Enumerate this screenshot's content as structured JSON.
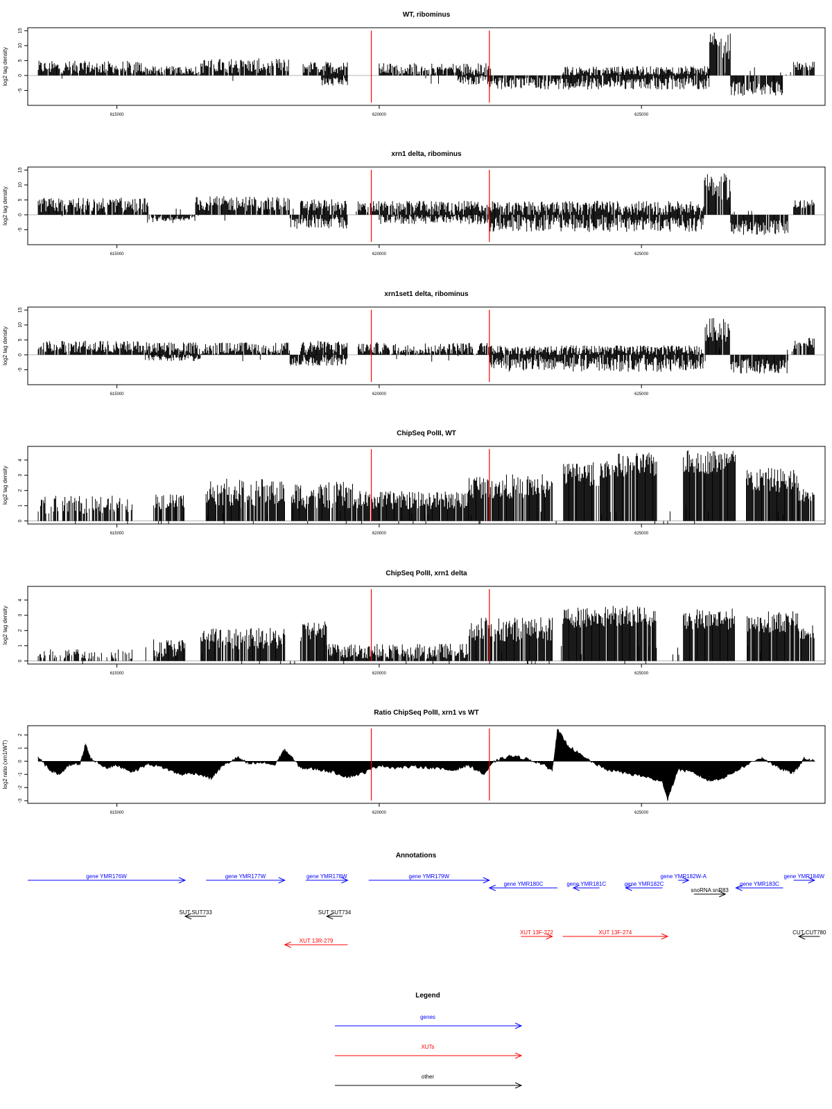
{
  "chart_data": [
    {
      "type": "bar",
      "title": "WT, ribominus",
      "ylabel": "log2 tag density",
      "xlim": [
        613300,
        628500
      ],
      "ylim": [
        -10,
        16
      ],
      "yticks": [
        -5,
        0,
        5,
        10,
        15
      ],
      "xticks": [
        615000,
        620000,
        625000
      ],
      "xtick_labels": [
        "615000",
        "620000",
        "625000"
      ],
      "vlines": [
        619850,
        622100
      ],
      "segments": [
        {
          "x": [
            613500,
            615500
          ],
          "sign": 1,
          "level": 2.5,
          "jitter": 2.2
        },
        {
          "x": [
            615500,
            616600
          ],
          "sign": 1,
          "level": 1.5,
          "jitter": 1.5
        },
        {
          "x": [
            616600,
            618300
          ],
          "sign": 1,
          "level": 3.0,
          "jitter": 2.5
        },
        {
          "x": [
            618550,
            619400
          ],
          "sign": 1,
          "level": 2.5,
          "jitter": 2.0
        },
        {
          "x": [
            618900,
            619400
          ],
          "sign": -1,
          "level": 2.0,
          "jitter": 1.5
        },
        {
          "x": [
            620000,
            622100
          ],
          "sign": 1,
          "level": 2.0,
          "jitter": 2.0
        },
        {
          "x": [
            621500,
            622100
          ],
          "sign": -1,
          "level": 1.5,
          "jitter": 1.5
        },
        {
          "x": [
            622100,
            626300
          ],
          "sign": -1,
          "level": 2.5,
          "jitter": 2.0
        },
        {
          "x": [
            623500,
            626300
          ],
          "sign": 1,
          "level": 1.5,
          "jitter": 1.5
        },
        {
          "x": [
            626300,
            626700
          ],
          "sign": 1,
          "level": 9.5,
          "jitter": 4.5
        },
        {
          "x": [
            626700,
            627700
          ],
          "sign": -1,
          "level": 4.0,
          "jitter": 2.5
        },
        {
          "x": [
            627900,
            628300
          ],
          "sign": 1,
          "level": 3.0,
          "jitter": 1.5
        }
      ]
    },
    {
      "type": "bar",
      "title": "xrn1 delta, ribominus",
      "ylabel": "log2 tag density",
      "xlim": [
        613300,
        628500
      ],
      "ylim": [
        -10,
        16
      ],
      "yticks": [
        -5,
        0,
        5,
        10,
        15
      ],
      "xticks": [
        615000,
        620000,
        625000
      ],
      "xtick_labels": [
        "615000",
        "620000",
        "625000"
      ],
      "vlines": [
        619850,
        622100
      ],
      "segments": [
        {
          "x": [
            613500,
            615600
          ],
          "sign": 1,
          "level": 3.0,
          "jitter": 2.5
        },
        {
          "x": [
            615600,
            616500
          ],
          "sign": -1,
          "level": 1.0,
          "jitter": 1.0
        },
        {
          "x": [
            616500,
            618300
          ],
          "sign": 1,
          "level": 3.5,
          "jitter": 2.5
        },
        {
          "x": [
            618300,
            619400
          ],
          "sign": -1,
          "level": 2.5,
          "jitter": 2.0
        },
        {
          "x": [
            618500,
            619400
          ],
          "sign": 1,
          "level": 3.0,
          "jitter": 2.0
        },
        {
          "x": [
            619600,
            622100
          ],
          "sign": 1,
          "level": 2.5,
          "jitter": 2.0
        },
        {
          "x": [
            620000,
            622100
          ],
          "sign": -1,
          "level": 1.5,
          "jitter": 1.5
        },
        {
          "x": [
            622100,
            626200
          ],
          "sign": -1,
          "level": 3.0,
          "jitter": 2.5
        },
        {
          "x": [
            622100,
            626200
          ],
          "sign": 1,
          "level": 2.5,
          "jitter": 2.0
        },
        {
          "x": [
            626200,
            626700
          ],
          "sign": 1,
          "level": 9.0,
          "jitter": 4.5
        },
        {
          "x": [
            626700,
            627800
          ],
          "sign": -1,
          "level": 4.0,
          "jitter": 2.5
        },
        {
          "x": [
            627900,
            628300
          ],
          "sign": 1,
          "level": 3.5,
          "jitter": 1.5
        }
      ]
    },
    {
      "type": "bar",
      "title": "xrn1set1 delta, ribominus",
      "ylabel": "log2 tag density",
      "xlim": [
        613300,
        628500
      ],
      "ylim": [
        -10,
        16
      ],
      "yticks": [
        -5,
        0,
        5,
        10,
        15
      ],
      "xticks": [
        615000,
        620000,
        625000
      ],
      "xtick_labels": [
        "615000",
        "620000",
        "625000"
      ],
      "vlines": [
        619850,
        622100
      ],
      "segments": [
        {
          "x": [
            613500,
            615600
          ],
          "sign": 1,
          "level": 2.5,
          "jitter": 2.0
        },
        {
          "x": [
            615600,
            616600
          ],
          "sign": -1,
          "level": 1.0,
          "jitter": 1.0
        },
        {
          "x": [
            615600,
            618300
          ],
          "sign": 1,
          "level": 2.0,
          "jitter": 2.0
        },
        {
          "x": [
            618300,
            619400
          ],
          "sign": -1,
          "level": 2.0,
          "jitter": 1.5
        },
        {
          "x": [
            618500,
            619400
          ],
          "sign": 1,
          "level": 2.5,
          "jitter": 2.0
        },
        {
          "x": [
            619600,
            622100
          ],
          "sign": 1,
          "level": 2.0,
          "jitter": 2.0
        },
        {
          "x": [
            622100,
            626200
          ],
          "sign": -1,
          "level": 3.0,
          "jitter": 2.5
        },
        {
          "x": [
            622100,
            626200
          ],
          "sign": 1,
          "level": 1.5,
          "jitter": 1.5
        },
        {
          "x": [
            626200,
            626700
          ],
          "sign": 1,
          "level": 8.0,
          "jitter": 4.0
        },
        {
          "x": [
            626700,
            627800
          ],
          "sign": -1,
          "level": 3.5,
          "jitter": 2.5
        },
        {
          "x": [
            627900,
            628300
          ],
          "sign": 1,
          "level": 3.5,
          "jitter": 2.0
        }
      ]
    },
    {
      "type": "bar",
      "title": "ChipSeq PolII, WT",
      "ylabel": "log2 tag density",
      "xlim": [
        613300,
        628500
      ],
      "ylim": [
        -0.2,
        4.9
      ],
      "yticks": [
        0,
        1,
        2,
        3,
        4
      ],
      "xticks": [
        615000,
        620000,
        625000
      ],
      "xtick_labels": [
        "615000",
        "620000",
        "625000"
      ],
      "vlines": [
        619850,
        622100
      ],
      "segments": [
        {
          "x": [
            613500,
            615300
          ],
          "sign": 1,
          "level": 1.0,
          "jitter": 0.6,
          "density": 0.6
        },
        {
          "x": [
            615700,
            616300
          ],
          "sign": 1,
          "level": 1.2,
          "jitter": 0.5,
          "density": 0.7
        },
        {
          "x": [
            616700,
            618200
          ],
          "sign": 1,
          "level": 1.8,
          "jitter": 0.9
        },
        {
          "x": [
            618300,
            619500
          ],
          "sign": 1,
          "level": 1.6,
          "jitter": 0.9
        },
        {
          "x": [
            619500,
            621700
          ],
          "sign": 1,
          "level": 1.3,
          "jitter": 0.6
        },
        {
          "x": [
            621700,
            623300
          ],
          "sign": 1,
          "level": 2.2,
          "jitter": 0.8
        },
        {
          "x": [
            623500,
            624400
          ],
          "sign": 1,
          "level": 3.0,
          "jitter": 0.8
        },
        {
          "x": [
            624300,
            625300
          ],
          "sign": 1,
          "level": 3.6,
          "jitter": 0.8
        },
        {
          "x": [
            625800,
            626800
          ],
          "sign": 1,
          "level": 3.8,
          "jitter": 0.8
        },
        {
          "x": [
            627000,
            628000
          ],
          "sign": 1,
          "level": 2.6,
          "jitter": 0.8
        },
        {
          "x": [
            628000,
            628300
          ],
          "sign": 1,
          "level": 1.6,
          "jitter": 0.5
        }
      ]
    },
    {
      "type": "bar",
      "title": "ChipSeq PolII, xrn1 delta",
      "ylabel": "log2 tag density",
      "xlim": [
        613300,
        628500
      ],
      "ylim": [
        -0.2,
        4.9
      ],
      "yticks": [
        0,
        1,
        2,
        3,
        4
      ],
      "xticks": [
        615000,
        620000,
        625000
      ],
      "xtick_labels": [
        "615000",
        "620000",
        "625000"
      ],
      "vlines": [
        619850,
        622100
      ],
      "segments": [
        {
          "x": [
            613500,
            615300
          ],
          "sign": 1,
          "level": 0.4,
          "jitter": 0.4,
          "density": 0.4
        },
        {
          "x": [
            615700,
            616300
          ],
          "sign": 1,
          "level": 0.8,
          "jitter": 0.6
        },
        {
          "x": [
            616600,
            618200
          ],
          "sign": 1,
          "level": 1.4,
          "jitter": 0.7
        },
        {
          "x": [
            618500,
            619000
          ],
          "sign": 1,
          "level": 1.9,
          "jitter": 0.7
        },
        {
          "x": [
            619000,
            621700
          ],
          "sign": 1,
          "level": 0.6,
          "jitter": 0.5
        },
        {
          "x": [
            621700,
            623300
          ],
          "sign": 1,
          "level": 2.0,
          "jitter": 0.8
        },
        {
          "x": [
            623500,
            624400
          ],
          "sign": 1,
          "level": 2.8,
          "jitter": 0.7
        },
        {
          "x": [
            624300,
            625300
          ],
          "sign": 1,
          "level": 2.9,
          "jitter": 0.7
        },
        {
          "x": [
            625800,
            626800
          ],
          "sign": 1,
          "level": 2.7,
          "jitter": 0.7
        },
        {
          "x": [
            627000,
            628000
          ],
          "sign": 1,
          "level": 2.5,
          "jitter": 0.7
        },
        {
          "x": [
            628000,
            628300
          ],
          "sign": 1,
          "level": 1.8,
          "jitter": 0.5
        }
      ]
    },
    {
      "type": "area",
      "title": "Ratio ChipSeq PolII, xrn1 vs WT",
      "ylabel": "log2 ratio (xrn1/WT)",
      "xlim": [
        613300,
        628500
      ],
      "ylim": [
        -3.2,
        2.7
      ],
      "yticks": [
        -3,
        -2,
        -1,
        0,
        1,
        2
      ],
      "xticks": [
        615000,
        620000,
        625000
      ],
      "xtick_labels": [
        "615000",
        "620000",
        "625000"
      ],
      "vlines": [
        619850,
        622100
      ],
      "points": [
        [
          613500,
          0.3
        ],
        [
          613700,
          -0.6
        ],
        [
          613900,
          -1.0
        ],
        [
          614100,
          -0.3
        ],
        [
          614300,
          -0.2
        ],
        [
          614400,
          1.3
        ],
        [
          614500,
          0.2
        ],
        [
          614800,
          -0.5
        ],
        [
          615000,
          -0.3
        ],
        [
          615300,
          -0.8
        ],
        [
          615600,
          -0.2
        ],
        [
          615900,
          -0.5
        ],
        [
          616200,
          -1.0
        ],
        [
          616500,
          -0.9
        ],
        [
          616800,
          -1.3
        ],
        [
          617000,
          -0.4
        ],
        [
          617300,
          0.3
        ],
        [
          617500,
          -0.2
        ],
        [
          617800,
          -0.1
        ],
        [
          618000,
          -0.3
        ],
        [
          618200,
          0.9
        ],
        [
          618500,
          -0.5
        ],
        [
          618800,
          -0.6
        ],
        [
          619100,
          -0.8
        ],
        [
          619400,
          -1.2
        ],
        [
          619700,
          -0.9
        ],
        [
          620000,
          -0.3
        ],
        [
          620300,
          -0.5
        ],
        [
          620700,
          -0.4
        ],
        [
          621000,
          -0.5
        ],
        [
          621400,
          -0.7
        ],
        [
          621700,
          -0.3
        ],
        [
          622000,
          -1.0
        ],
        [
          622200,
          0.0
        ],
        [
          622500,
          0.4
        ],
        [
          622800,
          0.2
        ],
        [
          623100,
          -0.2
        ],
        [
          623300,
          -0.7
        ],
        [
          623400,
          2.4
        ],
        [
          623600,
          1.2
        ],
        [
          623900,
          0.3
        ],
        [
          624300,
          -0.6
        ],
        [
          624700,
          -0.9
        ],
        [
          625100,
          -1.2
        ],
        [
          625400,
          -1.6
        ],
        [
          625500,
          -2.9
        ],
        [
          625700,
          -0.6
        ],
        [
          626000,
          -0.9
        ],
        [
          626300,
          -1.5
        ],
        [
          626600,
          -1.2
        ],
        [
          626900,
          -0.5
        ],
        [
          627300,
          0.3
        ],
        [
          627600,
          -0.5
        ],
        [
          627900,
          -0.9
        ],
        [
          628100,
          0.2
        ],
        [
          628300,
          0.0
        ]
      ]
    }
  ],
  "annotations": {
    "title": "Annotations",
    "items": [
      {
        "label": "gene YMR176W",
        "type": "gene",
        "x": [
          613300,
          616300
        ],
        "dir": "right",
        "row": 0
      },
      {
        "label": "gene YMR177W",
        "type": "gene",
        "x": [
          616700,
          618200
        ],
        "dir": "right",
        "row": 0
      },
      {
        "label": "gene YMR178W",
        "type": "gene",
        "x": [
          618600,
          619400
        ],
        "dir": "right",
        "row": 0
      },
      {
        "label": "gene YMR179W",
        "type": "gene",
        "x": [
          619800,
          622100
        ],
        "dir": "right",
        "row": 0
      },
      {
        "label": "gene YMR180C",
        "type": "gene",
        "x": [
          622100,
          623400
        ],
        "dir": "left",
        "row": 1
      },
      {
        "label": "gene YMR181C",
        "type": "gene",
        "x": [
          623700,
          624200
        ],
        "dir": "left",
        "row": 1
      },
      {
        "label": "gene YMR182C",
        "type": "gene",
        "x": [
          624700,
          625400
        ],
        "dir": "left",
        "row": 1
      },
      {
        "label": "gene YMR182W-A",
        "type": "gene",
        "x": [
          625700,
          625900
        ],
        "dir": "right",
        "row": 0
      },
      {
        "label": "gene YMR183C",
        "type": "gene",
        "x": [
          626800,
          627700
        ],
        "dir": "left",
        "row": 1
      },
      {
        "label": "gene YMR184W",
        "type": "gene",
        "x": [
          627900,
          628300
        ],
        "dir": "right",
        "row": 0
      },
      {
        "label": "snoRNA snR83",
        "type": "other",
        "x": [
          626000,
          626600
        ],
        "dir": "right",
        "row": 2
      },
      {
        "label": "SUT SUT733",
        "type": "other",
        "x": [
          616300,
          616700
        ],
        "dir": "left",
        "row": 3
      },
      {
        "label": "SUT SUT734",
        "type": "other",
        "x": [
          619000,
          619300
        ],
        "dir": "left",
        "row": 3
      },
      {
        "label": "XUT 13R-279",
        "type": "xut",
        "x": [
          618200,
          619400
        ],
        "dir": "left",
        "row": 5
      },
      {
        "label": "XUT 13F-272",
        "type": "xut",
        "x": [
          622700,
          623300
        ],
        "dir": "right",
        "row": 4
      },
      {
        "label": "XUT 13F-274",
        "type": "xut",
        "x": [
          623500,
          625500
        ],
        "dir": "right",
        "row": 4
      },
      {
        "label": "CUT CUT780",
        "type": "other",
        "x": [
          628000,
          628400
        ],
        "dir": "left",
        "row": 4
      }
    ]
  },
  "legend": {
    "title": "Legend",
    "items": [
      {
        "label": "genes",
        "type": "gene"
      },
      {
        "label": "XUTs",
        "type": "xut"
      },
      {
        "label": "other",
        "type": "other"
      }
    ]
  },
  "colors": {
    "gene": "#0000ff",
    "xut": "#ff0000",
    "other": "#000000",
    "vline": "#ff0000",
    "bars": "#000000"
  }
}
